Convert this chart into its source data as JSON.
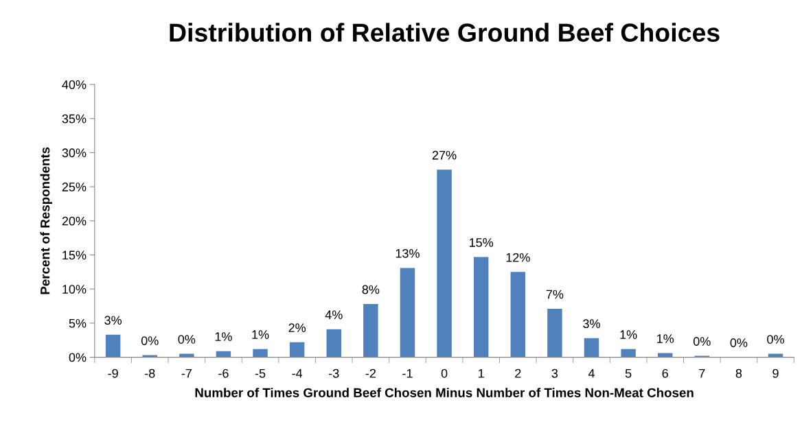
{
  "chart_data": {
    "type": "bar",
    "title": "Distribution of Relative Ground Beef Choices",
    "xlabel": "Number of Times Ground Beef Chosen Minus Number of Times Non-Meat Chosen",
    "ylabel": "Percent of Respondents",
    "categories": [
      "-9",
      "-8",
      "-7",
      "-6",
      "-5",
      "-4",
      "-3",
      "-2",
      "-1",
      "0",
      "1",
      "2",
      "3",
      "4",
      "5",
      "6",
      "7",
      "8",
      "9"
    ],
    "values": [
      3.3,
      0.3,
      0.5,
      0.9,
      1.2,
      2.2,
      4.1,
      7.8,
      13.1,
      27.5,
      14.7,
      12.5,
      7.1,
      2.8,
      1.2,
      0.6,
      0.2,
      0.0,
      0.5
    ],
    "value_labels": [
      "3%",
      "0%",
      "0%",
      "1%",
      "1%",
      "2%",
      "4%",
      "8%",
      "13%",
      "27%",
      "15%",
      "12%",
      "7%",
      "3%",
      "1%",
      "1%",
      "0%",
      "0%",
      "0%"
    ],
    "color": "#4f81bd",
    "ylim": [
      0,
      40
    ],
    "yticks": [
      {
        "value": 0,
        "label": "0%"
      },
      {
        "value": 5,
        "label": "5%"
      },
      {
        "value": 10,
        "label": "10%"
      },
      {
        "value": 15,
        "label": "15%"
      },
      {
        "value": 20,
        "label": "20%"
      },
      {
        "value": 25,
        "label": "25%"
      },
      {
        "value": 30,
        "label": "30%"
      },
      {
        "value": 35,
        "label": "35%"
      },
      {
        "value": 40,
        "label": "40%"
      }
    ],
    "grid": false,
    "legend": false
  }
}
